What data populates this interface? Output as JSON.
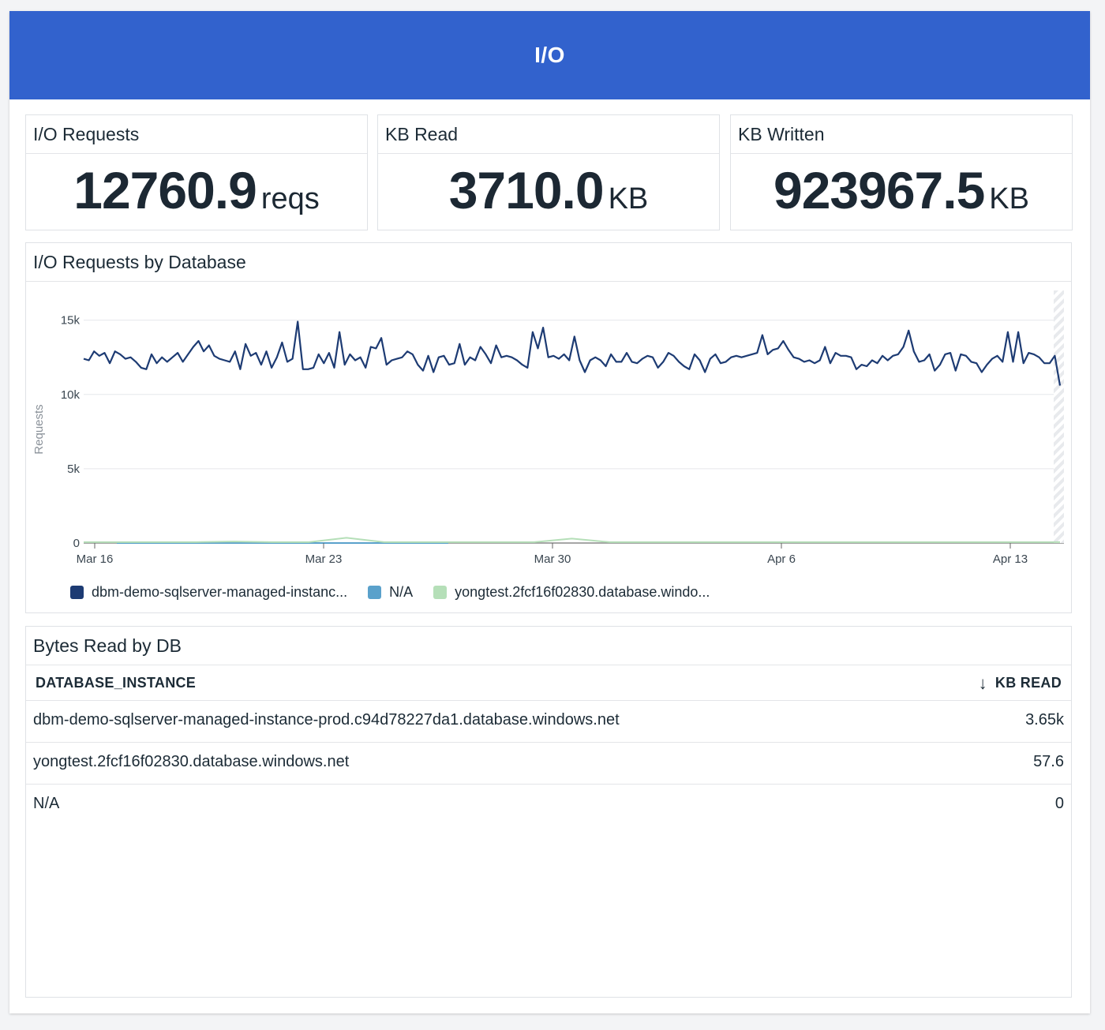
{
  "header": {
    "title": "I/O"
  },
  "query_values": [
    {
      "title": "I/O Requests",
      "value": "12760.9",
      "unit": "reqs"
    },
    {
      "title": "KB Read",
      "value": "3710.0",
      "unit": "KB"
    },
    {
      "title": "KB Written",
      "value": "923967.5",
      "unit": "KB"
    }
  ],
  "timeseries": {
    "title": "I/O Requests by Database",
    "ylabel": "Requests",
    "yticks": [
      "0",
      "5k",
      "10k",
      "15k"
    ],
    "xticks": [
      "Mar 16",
      "Mar 23",
      "Mar 30",
      "Apr 6",
      "Apr 13"
    ],
    "legend": [
      {
        "label": "dbm-demo-sqlserver-managed-instanc...",
        "color": "#1d3b73"
      },
      {
        "label": "N/A",
        "color": "#5aa1cb"
      },
      {
        "label": "yongtest.2fcf16f02830.database.windo...",
        "color": "#b5dfb8"
      }
    ]
  },
  "chart_data": {
    "type": "line",
    "ylim": [
      0,
      17000
    ],
    "x_range": [
      "Mar 16",
      "Apr 14"
    ],
    "series": [
      {
        "name": "dbm-demo-sqlserver-managed-instanc...",
        "color": "#1d3b73",
        "values": [
          12400,
          12300,
          12900,
          12600,
          12800,
          12100,
          12900,
          12700,
          12400,
          12500,
          12200,
          11800,
          11700,
          12700,
          12100,
          12500,
          12200,
          12500,
          12800,
          12200,
          12700,
          13200,
          13600,
          12900,
          13300,
          12600,
          12400,
          12300,
          12200,
          12900,
          11700,
          13400,
          12600,
          12800,
          12000,
          12900,
          11800,
          12500,
          13500,
          12200,
          12400,
          14900,
          11700,
          11700,
          11800,
          12700,
          12100,
          12800,
          11800,
          14200,
          12000,
          12700,
          12300,
          12500,
          11800,
          13200,
          13100,
          13800,
          12000,
          12300,
          12400,
          12500,
          12900,
          12700,
          12000,
          11600,
          12600,
          11500,
          12500,
          12600,
          12000,
          12100,
          13400,
          12000,
          12500,
          12300,
          13200,
          12700,
          12100,
          13300,
          12500,
          12600,
          12500,
          12300,
          12000,
          11800,
          14200,
          13100,
          14500,
          12500,
          12600,
          12400,
          12700,
          12300,
          13900,
          12300,
          11500,
          12300,
          12500,
          12300,
          11900,
          12700,
          12200,
          12200,
          12800,
          12200,
          12100,
          12400,
          12600,
          12500,
          11800,
          12200,
          12800,
          12600,
          12200,
          11900,
          11700,
          12700,
          12300,
          11500,
          12400,
          12700,
          12100,
          12200,
          12500,
          12600,
          12500,
          12600,
          12700,
          12800,
          14000,
          12700,
          13000,
          13100,
          13600,
          13000,
          12500,
          12400,
          12200,
          12300,
          12100,
          12300,
          13200,
          12100,
          12800,
          12600,
          12600,
          12500,
          11700,
          12000,
          11900,
          12300,
          12100,
          12600,
          12300,
          12600,
          12700,
          13200,
          14300,
          12900,
          12200,
          12300,
          12700,
          11600,
          12000,
          12700,
          12800,
          11600,
          12700,
          12600,
          12200,
          12100,
          11500,
          12000,
          12400,
          12600,
          12200,
          14200,
          12200,
          14200,
          12100,
          12800,
          12700,
          12500,
          12100,
          12100,
          12600,
          10600
        ]
      },
      {
        "name": "N/A",
        "color": "#5aa1cb",
        "values": [
          0,
          0
        ]
      },
      {
        "name": "yongtest.2fcf16f02830.database.windo...",
        "color": "#b5dfb8",
        "values": [
          60,
          60,
          60,
          60,
          100,
          60,
          60,
          350,
          60,
          60,
          60,
          60,
          60,
          300,
          60,
          60,
          60,
          60,
          60,
          60,
          60,
          60,
          60,
          60,
          60,
          60,
          60
        ]
      }
    ]
  },
  "table": {
    "title": "Bytes Read by DB",
    "col1": "DATABASE_INSTANCE",
    "col2": "KB READ",
    "sort_icon": "arrow-down-icon",
    "rows": [
      {
        "name": "dbm-demo-sqlserver-managed-instance-prod.c94d78227da1.database.windows.net",
        "value": "3.65k"
      },
      {
        "name": "yongtest.2fcf16f02830.database.windows.net",
        "value": "57.6"
      },
      {
        "name": "N/A",
        "value": "0"
      }
    ]
  }
}
